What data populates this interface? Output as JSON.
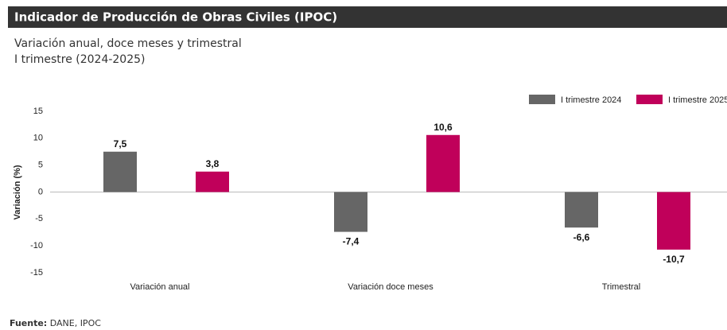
{
  "chart_data": {
    "type": "bar",
    "title": "Indicador de Producción de Obras Civiles (IPOC)",
    "subtitle": [
      "Variación anual, doce meses y trimestral",
      "I trimestre (2024-2025)"
    ],
    "y_label": "Variación (%)",
    "categories": [
      "Variación anual",
      "Variación doce meses",
      "Trimestral"
    ],
    "series": [
      {
        "name": "I trimestre 2024",
        "color": "#666666",
        "values": [
          7.5,
          -7.4,
          -6.6
        ],
        "value_labels": [
          "7,5",
          "-7,4",
          "-6,6"
        ]
      },
      {
        "name": "I trimestre 2025",
        "color": "#c0005a",
        "values": [
          3.8,
          10.6,
          -10.7
        ],
        "value_labels": [
          "3,8",
          "10,6",
          "-10,7"
        ]
      }
    ],
    "ylim": [
      -15,
      15
    ],
    "yticks": [
      15,
      10,
      5,
      0,
      -5,
      -10,
      -15
    ],
    "legend": "top-right",
    "source_label": "Fuente:",
    "source_text": "DANE, IPOC"
  }
}
